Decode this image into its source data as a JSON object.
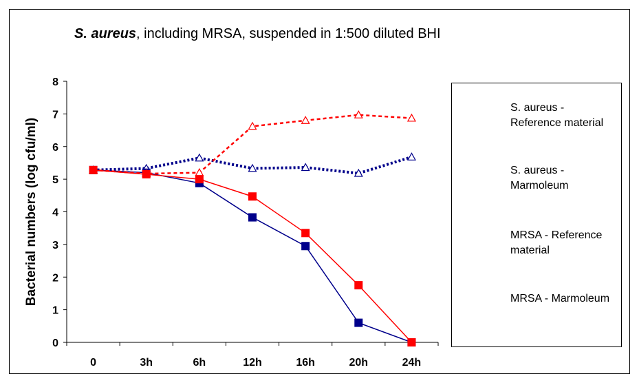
{
  "chart_data": {
    "type": "line",
    "title_italic": "S. aureus",
    "title_rest": ", including MRSA, suspended in 1:500 diluted BHI",
    "xlabel": "",
    "ylabel": "Bacterial numbers (log cfu/ml)",
    "categories": [
      "0",
      "3h",
      "6h",
      "12h",
      "16h",
      "20h",
      "24h"
    ],
    "ylim": [
      0,
      8
    ],
    "yticks": [
      "0",
      "1",
      "2",
      "3",
      "4",
      "5",
      "6",
      "7",
      "8"
    ],
    "grid": false,
    "legend_position": "right",
    "series": [
      {
        "name": "S. aureus - Reference material",
        "values": [
          5.28,
          5.33,
          5.65,
          5.33,
          5.36,
          5.18,
          5.68
        ],
        "color": "#00008b",
        "dash": "dotted",
        "marker": "triangle-open"
      },
      {
        "name": "S. aureus - Marmoleum",
        "values": [
          5.28,
          5.2,
          4.88,
          3.83,
          2.95,
          0.6,
          0.0
        ],
        "color": "#00008b",
        "dash": "solid",
        "marker": "square-filled"
      },
      {
        "name": "MRSA - Reference material",
        "values": [
          5.28,
          5.17,
          5.2,
          6.62,
          6.8,
          6.97,
          6.87
        ],
        "color": "#ff0000",
        "dash": "dashed",
        "marker": "triangle-open"
      },
      {
        "name": "MRSA - Marmoleum",
        "values": [
          5.28,
          5.15,
          5.0,
          4.47,
          3.35,
          1.75,
          0.0
        ],
        "color": "#ff0000",
        "dash": "solid",
        "marker": "square-filled"
      }
    ]
  },
  "legend": {
    "entries": [
      {
        "line1": "S. aureus -",
        "line2": "Reference material"
      },
      {
        "line1": "S. aureus -",
        "line2": "Marmoleum"
      },
      {
        "line1": "MRSA - Reference",
        "line2": "material"
      },
      {
        "line1": "MRSA - Marmoleum",
        "line2": ""
      }
    ]
  }
}
